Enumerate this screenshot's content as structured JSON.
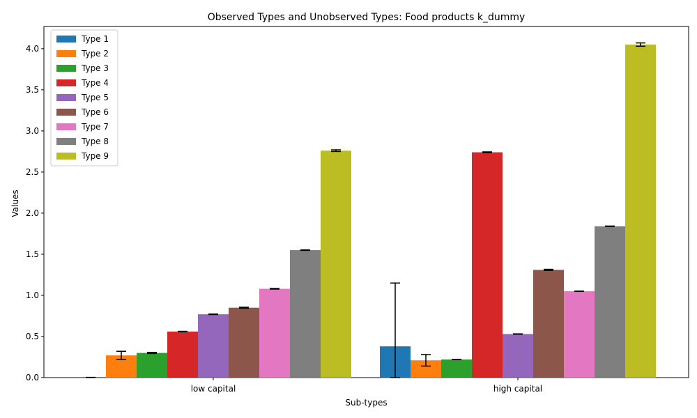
{
  "chart_data": {
    "type": "bar",
    "title": "Observed Types and Unobserved Types: Food products k_dummy",
    "xlabel": "Sub-types",
    "ylabel": "Values",
    "ylim": [
      0,
      4.27
    ],
    "yticks": [
      "0.0",
      "0.5",
      "1.0",
      "1.5",
      "2.0",
      "2.5",
      "3.0",
      "3.5",
      "4.0"
    ],
    "categories": [
      "low capital",
      "high capital"
    ],
    "legend_position": "upper-left",
    "series": [
      {
        "name": "Type 1",
        "color": "#1f77b4",
        "values": [
          0.0,
          0.38
        ],
        "errors": [
          0.003,
          0.77
        ]
      },
      {
        "name": "Type 2",
        "color": "#ff7f0e",
        "values": [
          0.27,
          0.21
        ],
        "errors": [
          0.05,
          0.07
        ]
      },
      {
        "name": "Type 3",
        "color": "#2ca02c",
        "values": [
          0.3,
          0.22
        ],
        "errors": [
          0.007,
          0.002
        ]
      },
      {
        "name": "Type 4",
        "color": "#d62728",
        "values": [
          0.56,
          2.74
        ],
        "errors": [
          0.003,
          0.005
        ]
      },
      {
        "name": "Type 5",
        "color": "#9467bd",
        "values": [
          0.77,
          0.53
        ],
        "errors": [
          0.003,
          0.002
        ]
      },
      {
        "name": "Type 6",
        "color": "#8c564b",
        "values": [
          0.85,
          1.31
        ],
        "errors": [
          0.006,
          0.007
        ]
      },
      {
        "name": "Type 7",
        "color": "#e377c2",
        "values": [
          1.08,
          1.05
        ],
        "errors": [
          0.004,
          0.002
        ]
      },
      {
        "name": "Type 8",
        "color": "#7f7f7f",
        "values": [
          1.55,
          1.84
        ],
        "errors": [
          0.003,
          0.003
        ]
      },
      {
        "name": "Type 9",
        "color": "#bcbd22",
        "values": [
          2.76,
          4.05
        ],
        "errors": [
          0.01,
          0.02
        ]
      }
    ]
  }
}
